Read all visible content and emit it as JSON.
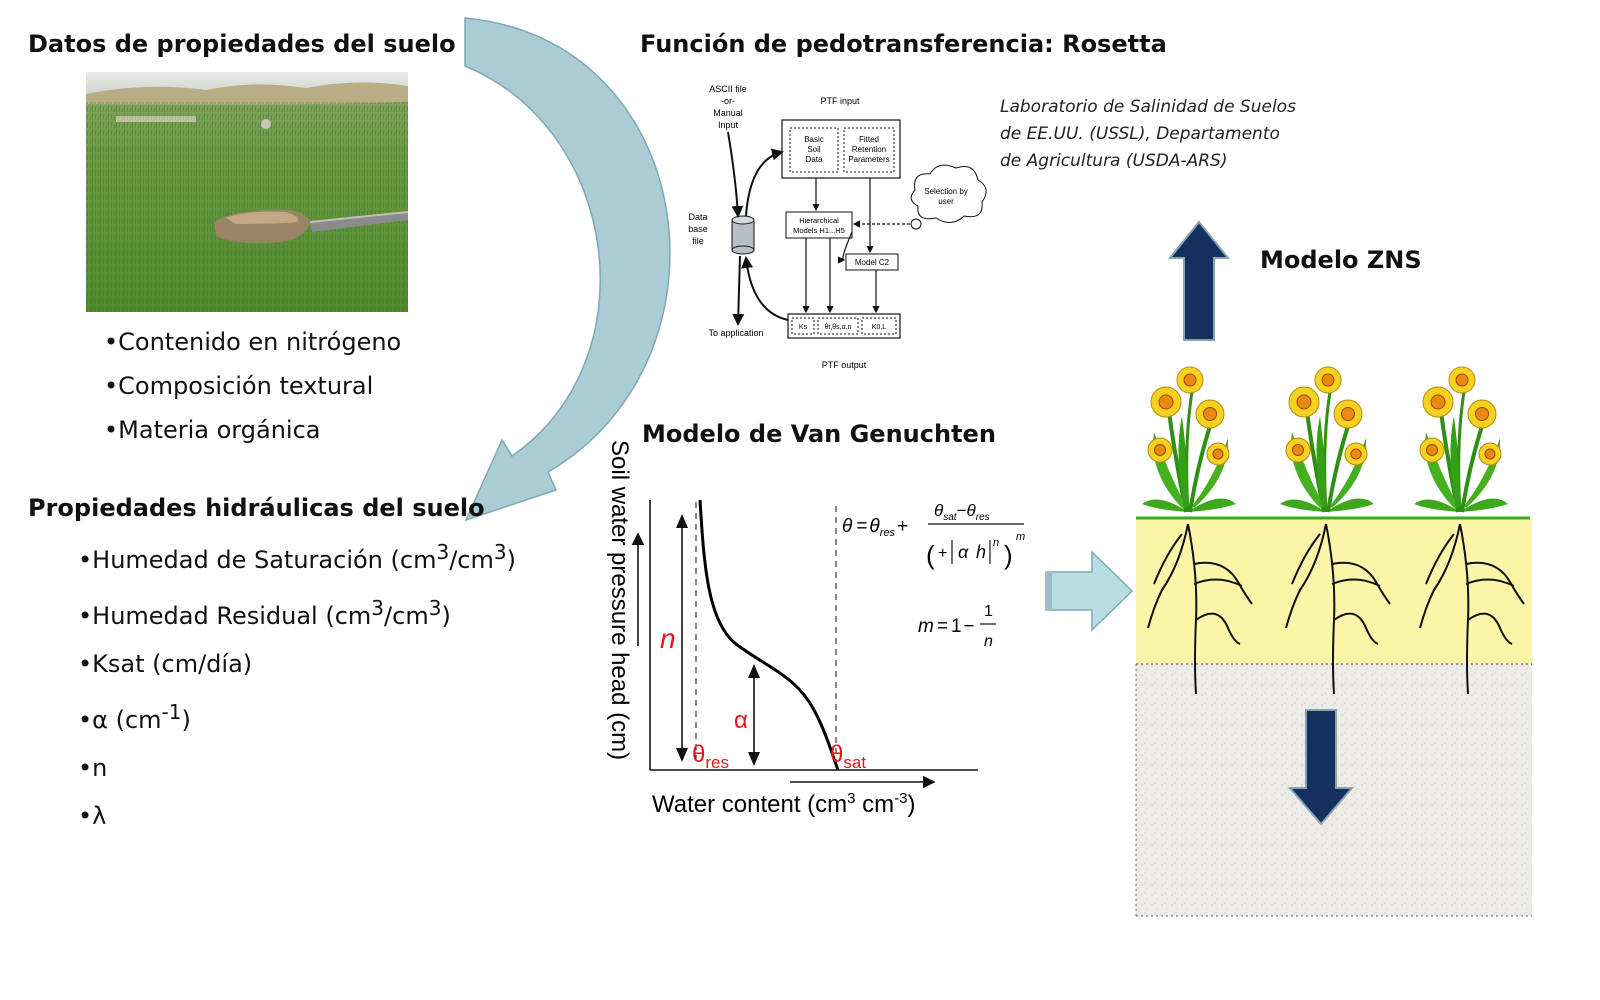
{
  "soil_data": {
    "heading": "Datos de propiedades del suelo",
    "items": [
      "•Contenido en nitrógeno",
      "•Composición textural",
      "•Materia orgánica"
    ]
  },
  "hydraulic": {
    "heading": "Propiedades hidráulicas del suelo",
    "items": [
      {
        "pre": "•Humedad de Saturación (cm",
        "sup1": "3",
        "mid": "/cm",
        "sup2": "3",
        "post": ")"
      },
      {
        "pre": "•Humedad Residual (cm",
        "sup1": "3",
        "mid": "/cm",
        "sup2": "3",
        "post": ")"
      },
      {
        "pre": "•Ksat (cm/día)",
        "sup1": "",
        "mid": "",
        "sup2": "",
        "post": ""
      },
      {
        "pre": "•α (cm",
        "sup1": "-1",
        "mid": ")",
        "sup2": "",
        "post": ""
      },
      {
        "pre": "•n",
        "sup1": "",
        "mid": "",
        "sup2": "",
        "post": ""
      },
      {
        "pre": "•λ",
        "sup1": "",
        "mid": "",
        "sup2": "",
        "post": ""
      }
    ]
  },
  "rosetta": {
    "heading": "Función de pedotransferencia: Rosetta",
    "institution_lines": [
      "Laboratorio de Salinidad de Suelos",
      "de EE.UU. (USSL), Departamento",
      "de Agricultura (USDA-ARS)"
    ],
    "flowchart": {
      "input_source": [
        "ASCII file",
        "-or-",
        "Manual",
        "Input"
      ],
      "ptf_input": "PTF input",
      "basic_soil_data": [
        "Basic",
        "Soil",
        "Data"
      ],
      "fitted_retention": [
        "Fitted",
        "Retention",
        "Parameters"
      ],
      "selection": [
        "Selection by",
        "user"
      ],
      "database": [
        "Data",
        "base",
        "file"
      ],
      "hierarchical": [
        "Hierarchical",
        "Models H1...H5"
      ],
      "model_c2": "Model C2",
      "to_application": "To application",
      "output_cells": [
        "Ks",
        "θr,θs,α,n",
        "K0,L"
      ],
      "ptf_output": "PTF output"
    }
  },
  "van_genuchten": {
    "heading": "Modelo de Van Genuchten",
    "y_axis_label": "Soil water pressure head (cm)",
    "x_axis_label_pre": "Water content (cm",
    "x_axis_sup1": "3",
    "x_axis_mid": " cm",
    "x_axis_sup2": "-3",
    "x_axis_post": ")",
    "param_n": "n",
    "param_alpha": "α",
    "theta": "θ",
    "res_sub": "res",
    "sat_sub": "sat",
    "eq_m": "m",
    "eq_one": "1",
    "eq_equals": "=",
    "eq_plus": "+",
    "eq_minus": "−",
    "eq_h": "h",
    "eq_n_sup": "n",
    "eq_m_sup": "m",
    "color_params": "#e8141c"
  },
  "zns": {
    "label": "Modelo ZNS",
    "arrow_color": "#14305e",
    "soil_color": "#fbf5a8"
  },
  "colors": {
    "curved_arrow": "#a9ccd5",
    "block_arrow": "#b8dde4"
  }
}
